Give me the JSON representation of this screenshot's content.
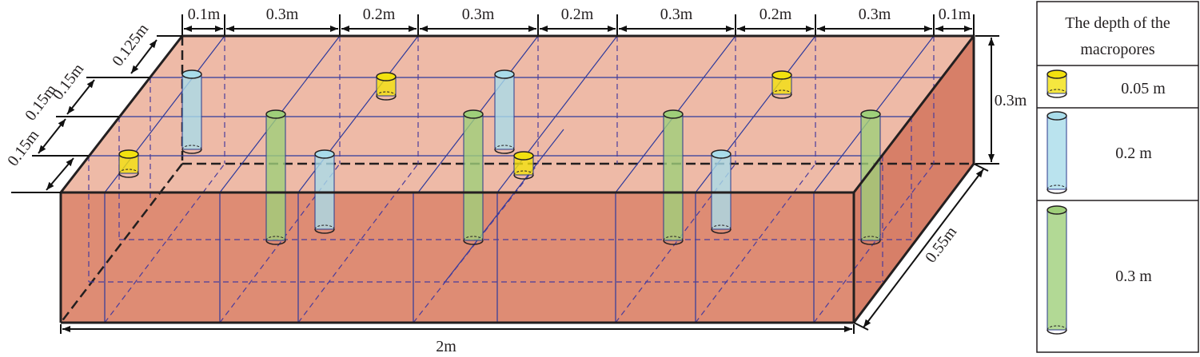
{
  "diagram": {
    "top_dims": [
      "0.1m",
      "0.3m",
      "0.2m",
      "0.3m",
      "0.2m",
      "0.3m",
      "0.2m",
      "0.3m",
      "0.1m"
    ],
    "side_dims": [
      "0.125m",
      "0.15m",
      "0.15m",
      "0.15m"
    ],
    "height_dim": "0.3m",
    "depth_dim": "0.55m",
    "length_dim": "2m"
  },
  "legend": {
    "title_line1": "The depth of the",
    "title_line2": "macropores",
    "items": [
      {
        "label": "0.05 m",
        "color": "#f2e10f"
      },
      {
        "label": "0.2 m",
        "color": "#a9dcea"
      },
      {
        "label": "0.3 m",
        "color": "#9fcf7a"
      }
    ]
  },
  "colors": {
    "soil_top": "#eebaa7",
    "soil_front": "#de8c74",
    "soil_side": "#d77f68",
    "grid_line": "#2e3a9c",
    "outline": "#231f20"
  }
}
